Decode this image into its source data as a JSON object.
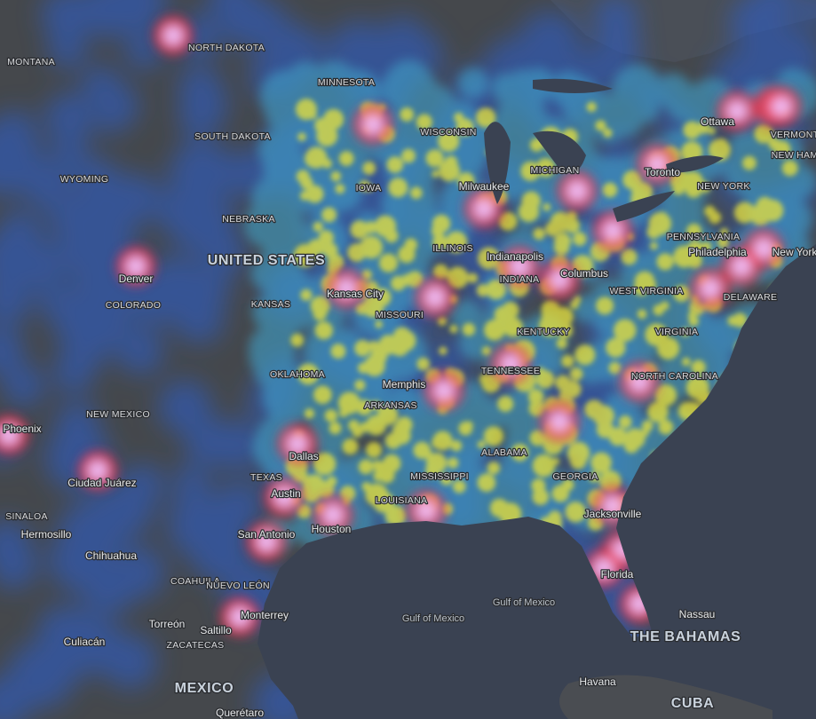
{
  "map": {
    "countries": [
      "UNITED STATES",
      "MEXICO",
      "CUBA",
      "THE BAHAMAS"
    ],
    "states": [
      "MONTANA",
      "NORTH DAKOTA",
      "MINNESOTA",
      "SOUTH DAKOTA",
      "WYOMING",
      "WISCONSIN",
      "MICHIGAN",
      "IOWA",
      "NEBRASKA",
      "ILLINOIS",
      "INDIANA",
      "COLORADO",
      "KANSAS",
      "MISSOURI",
      "KENTUCKY",
      "WEST VIRGINIA",
      "VIRGINIA",
      "PENNSYLVANIA",
      "NEW YORK",
      "VERMONT",
      "NEW HAM",
      "DELAWARE",
      "OKLAHOMA",
      "TENNESSEE",
      "NORTH CAROLINA",
      "ARKANSAS",
      "NEW MEXICO",
      "TEXAS",
      "LOUISIANA",
      "MISSISSIPPI",
      "ALABAMA",
      "GEORGIA",
      "COAHUILA",
      "NUEVO LEÓN",
      "SINALOA",
      "ZACATECAS"
    ],
    "cities": [
      "Ottawa",
      "Toronto",
      "Milwaukee",
      "Denver",
      "Indianapolis",
      "Columbus",
      "Philadelphia",
      "New York",
      "Kansas City",
      "Memphis",
      "Phoenix",
      "Dallas",
      "Austin",
      "Houston",
      "San Antonio",
      "Jacksonville",
      "Ciudad Juárez",
      "Hermosillo",
      "Chihuahua",
      "Monterrey",
      "Torreón",
      "Saltillo",
      "Culiacán",
      "Florida",
      "Nassau",
      "Havana",
      "Querétaro"
    ],
    "water": [
      "Gulf of Mexico",
      "Gulf of Mexico"
    ]
  }
}
